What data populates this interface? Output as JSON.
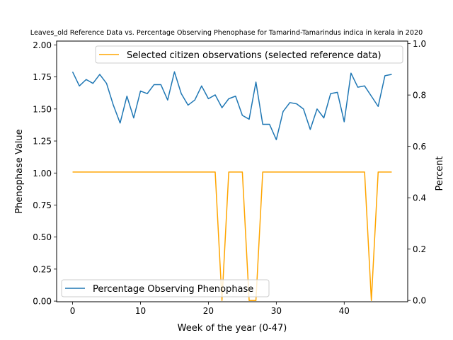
{
  "chart_data": {
    "type": "line",
    "title": "Leaves_old Reference Data vs. Percentage Observing Phenophase for Tamarind-Tamarindus indica in kerala in 2020",
    "xlabel": "Week of the year (0-47)",
    "ylabel_left": "Phenophase Value",
    "ylabel_right": "Percent",
    "xlim": [
      -2.35,
      49.35
    ],
    "ylim_left": [
      -0.005,
      2.03
    ],
    "ylim_right": [
      -0.005,
      1.01
    ],
    "x_ticks": [
      0,
      10,
      20,
      30,
      40
    ],
    "y_ticks_left": [
      0.0,
      0.25,
      0.5,
      0.75,
      1.0,
      1.25,
      1.5,
      1.75,
      2.0
    ],
    "y_tick_labels_left": [
      "0.00",
      "0.25",
      "0.50",
      "0.75",
      "1.00",
      "1.25",
      "1.50",
      "1.75",
      "2.00"
    ],
    "y_ticks_right": [
      0.0,
      0.2,
      0.4,
      0.6,
      0.8,
      1.0
    ],
    "y_tick_labels_right": [
      "0.0",
      "0.2",
      "0.4",
      "0.6",
      "0.8",
      "1.0"
    ],
    "series": [
      {
        "name": "Percentage Observing Phenophase",
        "axis": "left",
        "color": "#1f77b4",
        "x": [
          0,
          1,
          2,
          3,
          4,
          5,
          6,
          7,
          8,
          9,
          10,
          11,
          12,
          13,
          14,
          15,
          16,
          17,
          18,
          19,
          20,
          21,
          22,
          23,
          24,
          25,
          26,
          27,
          28,
          29,
          30,
          31,
          32,
          33,
          34,
          35,
          36,
          37,
          38,
          39,
          40,
          41,
          42,
          43,
          44,
          45,
          46,
          47
        ],
        "values": [
          1.79,
          1.68,
          1.73,
          1.7,
          1.77,
          1.7,
          1.53,
          1.39,
          1.6,
          1.43,
          1.64,
          1.62,
          1.69,
          1.69,
          1.57,
          1.79,
          1.62,
          1.53,
          1.57,
          1.68,
          1.58,
          1.61,
          1.51,
          1.58,
          1.6,
          1.45,
          1.42,
          1.71,
          1.38,
          1.38,
          1.26,
          1.48,
          1.55,
          1.54,
          1.5,
          1.34,
          1.5,
          1.43,
          1.62,
          1.63,
          1.4,
          1.78,
          1.67,
          1.68,
          1.6,
          1.52,
          1.76,
          1.77
        ]
      },
      {
        "name": "Selected citizen observations (selected reference data)",
        "axis": "right",
        "color": "#ffa500",
        "x": [
          0,
          1,
          2,
          3,
          4,
          5,
          6,
          7,
          8,
          9,
          10,
          11,
          12,
          13,
          14,
          15,
          16,
          17,
          18,
          19,
          20,
          21,
          22,
          23,
          24,
          25,
          26,
          27,
          28,
          29,
          30,
          31,
          32,
          33,
          34,
          35,
          36,
          37,
          38,
          39,
          40,
          41,
          42,
          43,
          44,
          45,
          46,
          47
        ],
        "values": [
          0.5,
          0.5,
          0.5,
          0.5,
          0.5,
          0.5,
          0.5,
          0.5,
          0.5,
          0.5,
          0.5,
          0.5,
          0.5,
          0.5,
          0.5,
          0.5,
          0.5,
          0.5,
          0.5,
          0.5,
          0.5,
          0.5,
          0.0,
          0.5,
          0.5,
          0.5,
          0.0,
          0.0,
          0.5,
          0.5,
          0.5,
          0.5,
          0.5,
          0.5,
          0.5,
          0.5,
          0.5,
          0.5,
          0.5,
          0.5,
          0.5,
          0.5,
          0.5,
          0.5,
          0.0,
          0.5,
          0.5,
          0.5
        ]
      }
    ],
    "legends": [
      {
        "placement": "top-right",
        "entries": [
          "Selected citizen observations (selected reference data)"
        ]
      },
      {
        "placement": "bottom-left",
        "entries": [
          "Percentage Observing Phenophase"
        ]
      }
    ],
    "grid": false
  }
}
